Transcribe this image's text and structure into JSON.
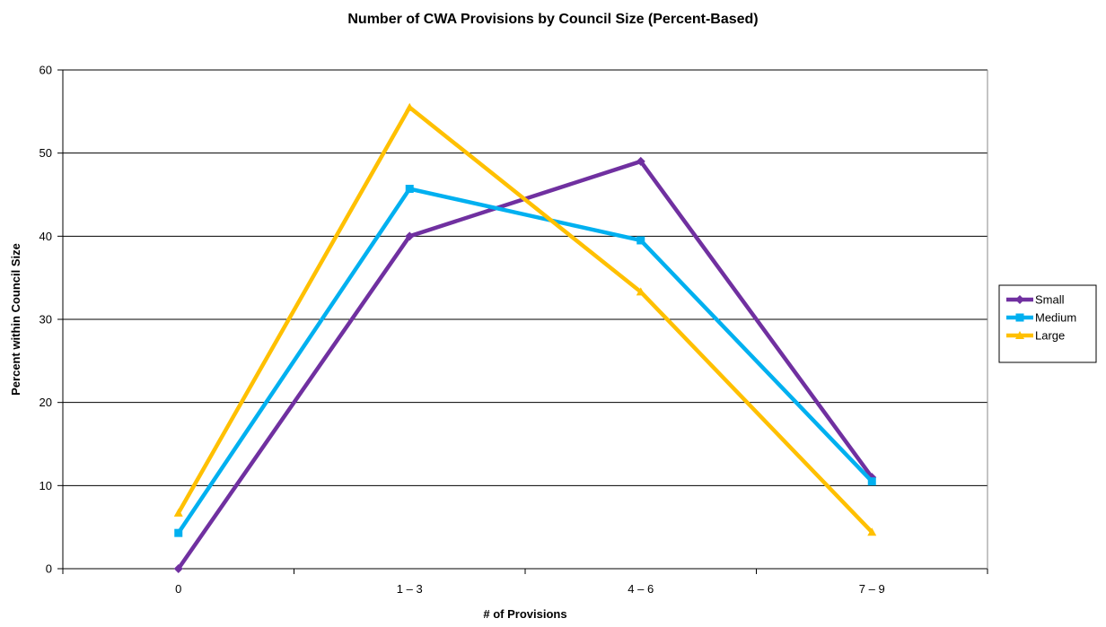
{
  "chart_data": {
    "type": "line",
    "title": "Number of CWA Provisions by Council Size (Percent-Based)",
    "xlabel": "# of Provisions",
    "ylabel": "Percent within Council Size",
    "categories": [
      "0",
      "1 – 3",
      "4 – 6",
      "7 – 9"
    ],
    "ylim": [
      0,
      60
    ],
    "yticks": [
      0,
      10,
      20,
      30,
      40,
      50,
      60
    ],
    "grid": true,
    "legend_position": "right",
    "series": [
      {
        "name": "Small",
        "values": [
          0,
          40,
          49,
          11
        ],
        "color": "#7030A0",
        "marker": "diamond"
      },
      {
        "name": "Medium",
        "values": [
          4.3,
          45.7,
          39.5,
          10.5
        ],
        "color": "#00B0F0",
        "marker": "square"
      },
      {
        "name": "Large",
        "values": [
          6.7,
          55.5,
          33.3,
          4.4
        ],
        "color": "#FFC000",
        "marker": "triangle"
      }
    ]
  }
}
